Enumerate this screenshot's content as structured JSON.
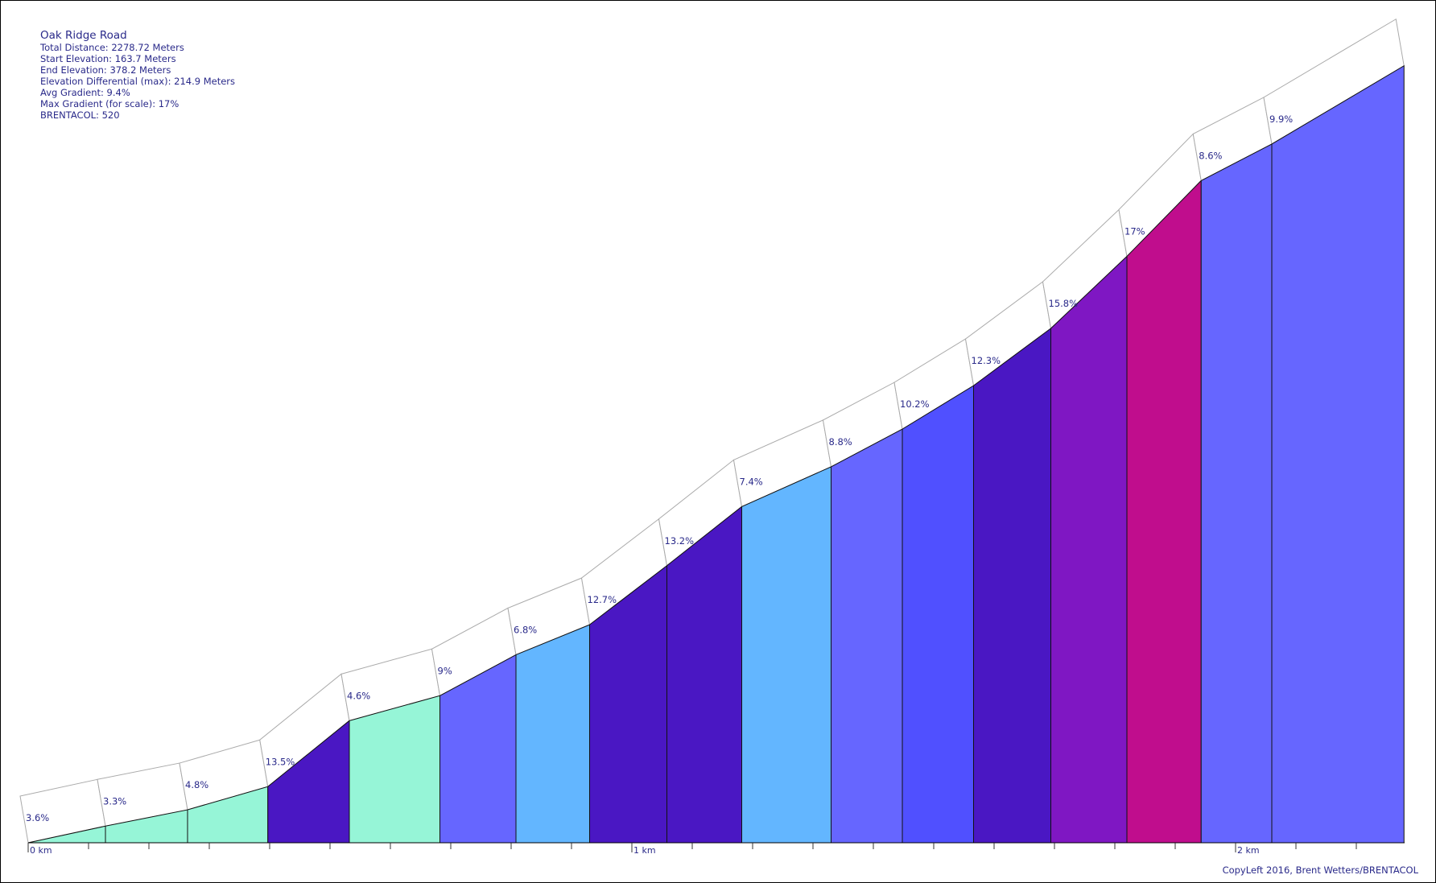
{
  "info": {
    "title": "Oak Ridge Road",
    "total_distance": "Total Distance: 2278.72 Meters",
    "start_elevation": "Start Elevation: 163.7 Meters",
    "end_elevation": "End Elevation: 378.2 Meters",
    "elevation_differential": "Elevation Differential (max): 214.9 Meters",
    "avg_gradient": "Avg Gradient: 9.4%",
    "max_gradient": "Max Gradient (for scale): 17%",
    "brentacol": "BRENTACOL: 520"
  },
  "credit": "CopyLeft 2016, Brent Wetters/BRENTACOL",
  "chart_data": {
    "type": "area",
    "title": "Oak Ridge Road",
    "xlabel": "",
    "ylabel": "",
    "x_unit": "km",
    "x_ticks": [
      "0 km",
      "1 km",
      "2 km"
    ],
    "xlim": [
      0,
      2.28
    ],
    "ylim": [
      163.7,
      378.6
    ],
    "segments": [
      {
        "x0": 0.0,
        "x1": 0.128,
        "y0": 163.7,
        "y1": 168.3,
        "gradient": "3.6%",
        "color": "#96f5d7"
      },
      {
        "x0": 0.128,
        "x1": 0.264,
        "y0": 168.3,
        "y1": 172.8,
        "gradient": "3.3%",
        "color": "#96f5d7"
      },
      {
        "x0": 0.264,
        "x1": 0.397,
        "y0": 172.8,
        "y1": 179.2,
        "gradient": "4.8%",
        "color": "#96f5d7"
      },
      {
        "x0": 0.397,
        "x1": 0.532,
        "y0": 179.2,
        "y1": 197.4,
        "gradient": "13.5%",
        "color": "#4a17c3"
      },
      {
        "x0": 0.532,
        "x1": 0.682,
        "y0": 197.4,
        "y1": 204.3,
        "gradient": "4.6%",
        "color": "#96f5d7"
      },
      {
        "x0": 0.682,
        "x1": 0.808,
        "y0": 204.3,
        "y1": 215.6,
        "gradient": "9%",
        "color": "#6666ff"
      },
      {
        "x0": 0.808,
        "x1": 0.93,
        "y0": 215.6,
        "y1": 223.9,
        "gradient": "6.8%",
        "color": "#63b6ff"
      },
      {
        "x0": 0.93,
        "x1": 1.058,
        "y0": 223.9,
        "y1": 240.2,
        "gradient": "12.7%",
        "color": "#4a17c3"
      },
      {
        "x0": 1.058,
        "x1": 1.182,
        "y0": 240.2,
        "y1": 256.5,
        "gradient": "13.2%",
        "color": "#4a17c3"
      },
      {
        "x0": 1.182,
        "x1": 1.33,
        "y0": 256.5,
        "y1": 267.5,
        "gradient": "7.4%",
        "color": "#63b6ff"
      },
      {
        "x0": 1.33,
        "x1": 1.448,
        "y0": 267.5,
        "y1": 277.9,
        "gradient": "8.8%",
        "color": "#6666ff"
      },
      {
        "x0": 1.448,
        "x1": 1.566,
        "y0": 277.9,
        "y1": 289.9,
        "gradient": "10.2%",
        "color": "#5050ff"
      },
      {
        "x0": 1.566,
        "x1": 1.694,
        "y0": 289.9,
        "y1": 305.7,
        "gradient": "12.3%",
        "color": "#4a17c3"
      },
      {
        "x0": 1.694,
        "x1": 1.82,
        "y0": 305.7,
        "y1": 325.6,
        "gradient": "15.8%",
        "color": "#7f17c3"
      },
      {
        "x0": 1.82,
        "x1": 1.943,
        "y0": 325.6,
        "y1": 346.5,
        "gradient": "17%",
        "color": "#c00d8d"
      },
      {
        "x0": 1.943,
        "x1": 2.06,
        "y0": 346.5,
        "y1": 356.6,
        "gradient": "8.6%",
        "color": "#6666ff"
      },
      {
        "x0": 2.06,
        "x1": 2.279,
        "y0": 356.6,
        "y1": 378.2,
        "gradient": "9.9%",
        "color": "#6666ff"
      }
    ]
  }
}
